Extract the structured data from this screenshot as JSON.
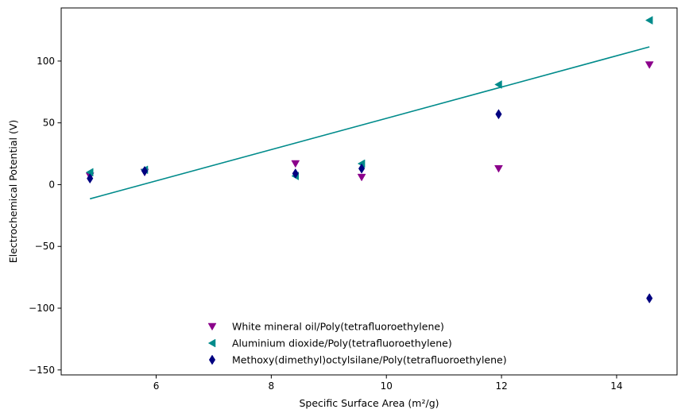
{
  "chart_data": {
    "type": "scatter",
    "title": "",
    "xlabel": "Specific Surface Area (m²/g)",
    "ylabel": "Electrochemical Potential (V)",
    "xlim": [
      4.35,
      15.05
    ],
    "ylim": [
      -154,
      143
    ],
    "xticks": [
      6,
      8,
      10,
      12,
      14
    ],
    "yticks": [
      -150,
      -100,
      -50,
      0,
      50,
      100
    ],
    "xtick_labels": [
      "6",
      "8",
      "10",
      "12",
      "14"
    ],
    "ytick_labels": [
      "−150",
      "−100",
      "−50",
      "0",
      "50",
      "100"
    ],
    "grid": false,
    "legend_position": "lower-center",
    "series": [
      {
        "name": "White mineral oil/Poly(tetrafluoroethylene)",
        "marker": "triangle-down",
        "color": "#8b008b",
        "x": [
          4.85,
          5.8,
          8.42,
          9.57,
          11.95,
          14.57
        ],
        "y": [
          7,
          10,
          17,
          6,
          13,
          97
        ]
      },
      {
        "name": "Aluminium dioxide/Poly(tetrafluoroethylene)",
        "marker": "triangle-left",
        "color": "#008b8b",
        "x": [
          4.85,
          5.8,
          8.42,
          9.57,
          11.95,
          14.57
        ],
        "y": [
          10,
          12,
          7,
          17,
          81,
          133
        ]
      },
      {
        "name": "Methoxy(dimethyl)octylsilane/Poly(tetrafluoroethylene)",
        "marker": "thin-diamond",
        "color": "#000080",
        "x": [
          4.85,
          5.8,
          8.42,
          9.57,
          11.95,
          14.57
        ],
        "y": [
          5,
          11,
          9,
          13,
          57,
          -92
        ]
      }
    ],
    "trend_line": {
      "color": "#008b8b",
      "x": [
        4.85,
        14.57
      ],
      "y": [
        -11.5,
        111.5
      ]
    }
  }
}
